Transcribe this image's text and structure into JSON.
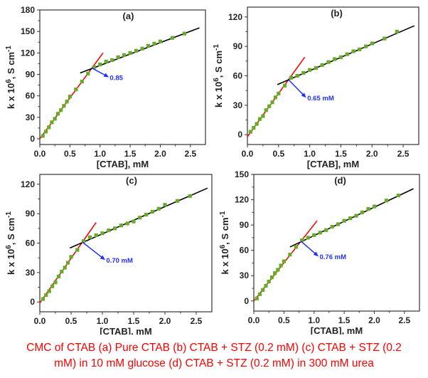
{
  "caption": {
    "line1": "CMC of CTAB (a) Pure CTAB (b) CTAB + STZ (0.2 mM) (c) CTAB + STZ (0.2",
    "line2": "mM) in 10 mM glucose (d) CTAB + STZ (0.2 mM) in 300 mM urea",
    "color": "#ff0000"
  },
  "colors": {
    "points": "#6aaa2a",
    "pre_cmc_fit": "#ff0000",
    "post_cmc_fit": "#000000",
    "annotation": "#1f2fff"
  },
  "chart_data": [
    {
      "type": "scatter",
      "panel": "(a)",
      "xlabel": "[CTAB], mM",
      "ylabel": "k x 10^6, S cm^-1",
      "xlim": [
        0,
        2.75
      ],
      "ylim": [
        -8,
        180
      ],
      "xticks": [
        "0.0",
        "0.5",
        "1.0",
        "1.5",
        "2.0",
        "2.5"
      ],
      "yticks": [
        "0",
        "30",
        "60",
        "90",
        "120",
        "150",
        "180"
      ],
      "ytick_values": [
        0,
        30,
        60,
        90,
        120,
        150,
        180
      ],
      "x": [
        0.05,
        0.1,
        0.15,
        0.2,
        0.25,
        0.3,
        0.35,
        0.4,
        0.45,
        0.5,
        0.6,
        0.7,
        0.8,
        0.9,
        1.0,
        1.1,
        1.2,
        1.3,
        1.4,
        1.5,
        1.6,
        1.7,
        1.8,
        1.9,
        2.0,
        2.2,
        2.4
      ],
      "y": [
        4,
        10,
        16,
        23,
        28,
        35,
        40,
        46,
        52,
        59,
        69,
        80,
        91,
        100,
        104,
        108,
        110,
        114,
        117,
        120,
        123,
        126,
        130,
        133,
        136,
        141,
        147
      ],
      "fit_pre": {
        "x": [
          0,
          1.05
        ],
        "y": [
          0,
          120
        ]
      },
      "fit_post": {
        "x": [
          0.67,
          2.65
        ],
        "y": [
          92,
          155
        ]
      },
      "cmc_point": {
        "x": 0.86,
        "y": 99
      },
      "annotation": {
        "text": "0.85",
        "x": 1.15,
        "y": 86
      }
    },
    {
      "type": "scatter",
      "panel": "(b)",
      "xlabel": "[CTAB], mM",
      "ylabel": "k x 10^6, S cm^-1",
      "xlim": [
        0,
        2.75
      ],
      "ylim": [
        -10,
        130
      ],
      "xticks": [
        "0.0",
        "0.5",
        "1.0",
        "1.5",
        "2.0",
        "2.5"
      ],
      "yticks": [
        "0",
        "30",
        "60",
        "90",
        "120"
      ],
      "ytick_values": [
        0,
        30,
        60,
        90,
        120
      ],
      "x": [
        0.05,
        0.1,
        0.15,
        0.2,
        0.25,
        0.3,
        0.35,
        0.4,
        0.45,
        0.5,
        0.6,
        0.7,
        0.8,
        0.9,
        1.0,
        1.1,
        1.2,
        1.3,
        1.4,
        1.5,
        1.6,
        1.7,
        1.8,
        1.9,
        2.0,
        2.2,
        2.4
      ],
      "y": [
        3,
        7,
        11,
        16,
        19,
        25,
        29,
        33,
        38,
        42,
        50,
        58,
        60,
        63,
        66,
        68,
        71,
        74,
        77,
        79,
        82,
        85,
        87,
        90,
        93,
        98,
        105
      ],
      "fit_pre": {
        "x": [
          0,
          0.92
        ],
        "y": [
          -2,
          79
        ]
      },
      "fit_post": {
        "x": [
          0.48,
          2.68
        ],
        "y": [
          51,
          111
        ]
      },
      "cmc_point": {
        "x": 0.66,
        "y": 56
      },
      "annotation": {
        "text": "0.65 mM",
        "x": 0.95,
        "y": 38
      }
    },
    {
      "type": "scatter",
      "panel": "(c)",
      "xlabel": "[CTAB], mM",
      "ylabel": "k x 10^6, S cm^-1",
      "xlim": [
        0,
        2.75
      ],
      "ylim": [
        -10,
        130
      ],
      "xticks": [
        "0.0",
        "0.5",
        "1.0",
        "1.5",
        "2.0",
        "2.5"
      ],
      "yticks": [
        "0",
        "30",
        "60",
        "90",
        "120"
      ],
      "ytick_values": [
        0,
        30,
        60,
        90,
        120
      ],
      "x": [
        0.05,
        0.1,
        0.15,
        0.2,
        0.25,
        0.3,
        0.35,
        0.4,
        0.45,
        0.5,
        0.6,
        0.7,
        0.8,
        0.9,
        1.0,
        1.1,
        1.2,
        1.3,
        1.4,
        1.5,
        1.6,
        1.7,
        1.8,
        1.9,
        2.0,
        2.2,
        2.4
      ],
      "y": [
        3,
        7,
        11,
        16,
        20,
        26,
        31,
        35,
        40,
        46,
        53,
        62,
        66,
        68,
        70,
        73,
        75,
        78,
        80,
        82,
        86,
        89,
        92,
        95,
        99,
        103,
        108
      ],
      "fit_pre": {
        "x": [
          0,
          0.9
        ],
        "y": [
          -1,
          81
        ]
      },
      "fit_post": {
        "x": [
          0.48,
          2.68
        ],
        "y": [
          55,
          116
        ]
      },
      "cmc_point": {
        "x": 0.68,
        "y": 61
      },
      "annotation": {
        "text": "0.70 mM",
        "x": 1.05,
        "y": 43
      }
    },
    {
      "type": "scatter",
      "panel": "(d)",
      "xlabel": "[CTAB], mM",
      "ylabel": "k x 10^6, S cm^-1",
      "xlim": [
        0,
        2.75
      ],
      "ylim": [
        -12,
        150
      ],
      "xticks": [
        "0.0",
        "0.5",
        "1.0",
        "1.5",
        "2.0",
        "2.5"
      ],
      "yticks": [
        "0",
        "30",
        "60",
        "90",
        "120",
        "150"
      ],
      "ytick_values": [
        0,
        30,
        60,
        90,
        120,
        150
      ],
      "x": [
        0.05,
        0.1,
        0.15,
        0.2,
        0.25,
        0.3,
        0.35,
        0.4,
        0.45,
        0.5,
        0.6,
        0.7,
        0.8,
        0.9,
        1.0,
        1.1,
        1.2,
        1.3,
        1.4,
        1.5,
        1.6,
        1.7,
        1.8,
        1.9,
        2.0,
        2.2,
        2.4
      ],
      "y": [
        3,
        8,
        13,
        18,
        23,
        28,
        33,
        37,
        42,
        47,
        55,
        64,
        72,
        75,
        78,
        81,
        84,
        88,
        91,
        95,
        98,
        101,
        105,
        109,
        112,
        119,
        125
      ],
      "fit_pre": {
        "x": [
          0,
          1.05
        ],
        "y": [
          0,
          95
        ]
      },
      "fit_post": {
        "x": [
          0.6,
          2.65
        ],
        "y": [
          64,
          133
        ]
      },
      "cmc_point": {
        "x": 0.78,
        "y": 71
      },
      "annotation": {
        "text": "0.76 mM",
        "x": 1.08,
        "y": 53
      }
    }
  ]
}
